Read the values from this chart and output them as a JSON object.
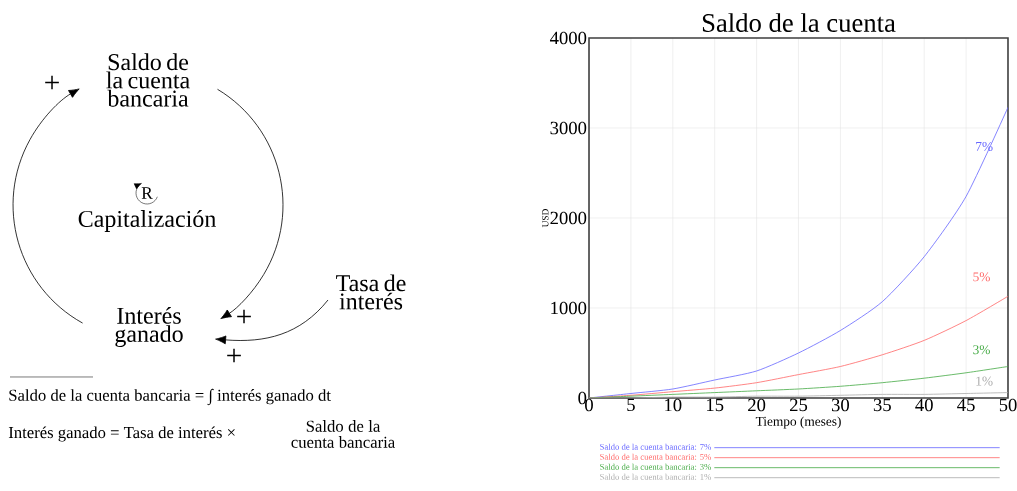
{
  "chart_data": [
    {
      "type": "other",
      "annotations": [
        "Saldo de la cuenta bancaria",
        "Capitalización",
        "R",
        "Interés ganado",
        "Tasa de interés",
        "+",
        "+",
        "+",
        "Saldo de la cuenta bancaria = ∫ interés ganado dt",
        "Interés ganado = Tasa de interés ×",
        "Saldo de la cuenta bancaria"
      ]
    },
    {
      "type": "line",
      "title": "Saldo de la cuenta",
      "xlabel": "Tiempo (meses)",
      "ylabel": "USD",
      "x": [
        0,
        5,
        10,
        15,
        20,
        25,
        30,
        35,
        40,
        45,
        50
      ],
      "xlim": [
        0,
        50
      ],
      "ylim": [
        0,
        4000
      ],
      "xticks": [
        0,
        5,
        10,
        15,
        20,
        25,
        30,
        35,
        40,
        45,
        50
      ],
      "yticks": [
        0,
        1000,
        2000,
        3000,
        4000
      ],
      "grid": true,
      "legend": "bottom",
      "series": [
        {
          "name": "Saldo de la cuenta bancaria: 7%",
          "color": "#6666ff",
          "values": [
            0,
            50,
            100,
            200,
            300,
            500,
            750,
            1070,
            1570,
            2240,
            3230
          ]
        },
        {
          "name": "Saldo de la cuenta bancaria: 5%",
          "color": "#ff6666",
          "values": [
            0,
            30,
            70,
            110,
            170,
            260,
            350,
            480,
            640,
            860,
            1130
          ]
        },
        {
          "name": "Saldo de la cuenta bancaria: 3%",
          "color": "#44aa44",
          "values": [
            0,
            20,
            40,
            60,
            80,
            100,
            130,
            170,
            220,
            280,
            350
          ]
        },
        {
          "name": "Saldo de la cuenta bancaria: 1%",
          "color": "#aaaaaa",
          "values": [
            0,
            0,
            10,
            10,
            20,
            20,
            30,
            40,
            40,
            50,
            60
          ]
        }
      ],
      "annotations": [
        "7%",
        "5%",
        "3%",
        "1%"
      ]
    }
  ]
}
